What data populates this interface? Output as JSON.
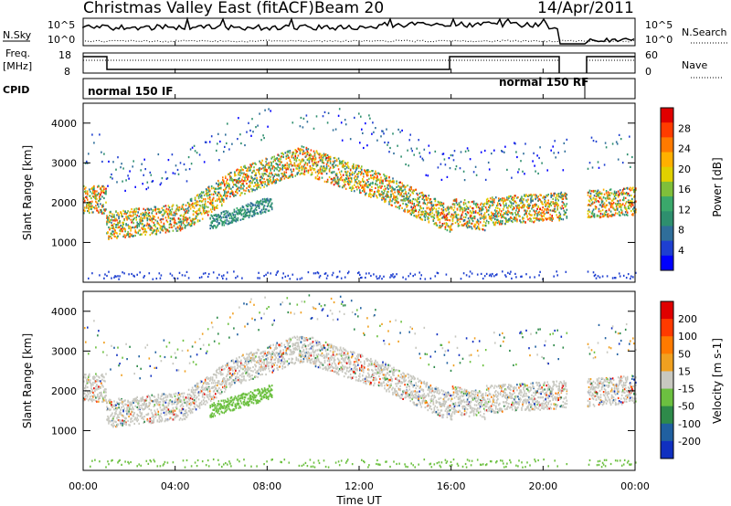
{
  "header": {
    "station": "Christmas Valley East (fitACF)",
    "beam": "Beam 20",
    "date": "14/Apr/2011"
  },
  "aux_panels": {
    "nsky_label": "N.Sky",
    "nsearch_label": "N.Search",
    "nsky_ticks_left": [
      "10^5",
      "10^0"
    ],
    "nsky_ticks_right": [
      "10^5",
      "10^0"
    ],
    "freq_label": "Freq.",
    "freq_unit": "[MHz]",
    "freq_ticks": [
      "18",
      "8"
    ],
    "nave_label": "Nave",
    "nave_ticks": [
      "60",
      "0"
    ],
    "cpid_label": "CPID",
    "cpid_segments": [
      "normal 150 IF",
      "normal 150 RF"
    ]
  },
  "chart_data": [
    {
      "type": "heatmap",
      "panel": "power",
      "ylabel": "Slant Range [km]",
      "yticks": [
        "1000",
        "2000",
        "3000",
        "4000"
      ],
      "ylim": [
        0,
        4500
      ],
      "colorbar_label": "Power [dB]",
      "colorbar_ticks": [
        "28",
        "24",
        "20",
        "16",
        "12",
        "8",
        "4"
      ],
      "colors": [
        "#0000ff",
        "#1e3fd0",
        "#2f6e9a",
        "#2e8f6e",
        "#3aa86b",
        "#7fbf3a",
        "#e0d000",
        "#ffb000",
        "#ff7a00",
        "#ff3c00",
        "#e00000"
      ],
      "grid": false
    },
    {
      "type": "heatmap",
      "panel": "velocity",
      "ylabel": "Slant Range [km]",
      "yticks": [
        "1000",
        "2000",
        "3000",
        "4000"
      ],
      "ylim": [
        0,
        4500
      ],
      "colorbar_label": "Velocity [m s-1]",
      "colorbar_ticks": [
        "200",
        "100",
        "50",
        "15",
        "-15",
        "-50",
        "-100",
        "-200"
      ],
      "colors": [
        "#1030c0",
        "#2060a0",
        "#2e8a4a",
        "#6cc040",
        "#c8c8c0",
        "#f0a020",
        "#ff7a00",
        "#ff3a00",
        "#e00000"
      ],
      "grid": false
    }
  ],
  "xaxis": {
    "label": "Time UT",
    "ticks": [
      "00:00",
      "04:00",
      "08:00",
      "12:00",
      "16:00",
      "20:00",
      "00:00"
    ]
  }
}
